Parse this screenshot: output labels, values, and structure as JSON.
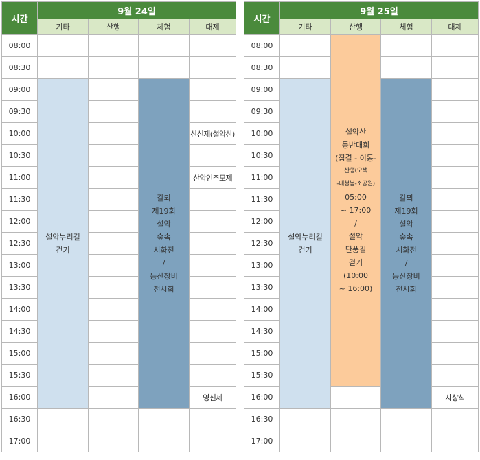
{
  "time_header": "시간",
  "categories": [
    "기타",
    "산행",
    "체험",
    "대제"
  ],
  "times": [
    "08:00",
    "08:30",
    "09:00",
    "09:30",
    "10:00",
    "10:30",
    "11:00",
    "11:30",
    "12:00",
    "12:30",
    "13:00",
    "13:30",
    "14:00",
    "14:30",
    "15:00",
    "15:30",
    "16:00",
    "16:30",
    "17:00"
  ],
  "day1": {
    "date": "9월 24일",
    "gita_event": [
      "설악누리길",
      "걷기"
    ],
    "cheheom_event": [
      "갈뫼",
      "제19회",
      "설악",
      "숲속",
      "시화전",
      "/",
      "등산장비",
      "전시회"
    ],
    "daeje_1000": "산신제(설악산)",
    "daeje_1100": "산악인추모제",
    "daeje_1600": "영신제"
  },
  "day2": {
    "date": "9월 25일",
    "gita_event": [
      "설악누리길",
      "걷기"
    ],
    "sanhaeng_event": [
      "설악산",
      "등반대회",
      "(집결 - 이동-",
      "산행(오색",
      "-대청봉-소공원)",
      "05:00",
      "~ 17:00",
      "/",
      "설악",
      "단풍길",
      "걷기",
      "(10:00",
      "~ 16:00)"
    ],
    "cheheom_event": [
      "갈뫼",
      "제19회",
      "설악",
      "숲속",
      "시화전",
      "/",
      "등산장비",
      "전시회"
    ],
    "daeje_1600": "시상식"
  }
}
